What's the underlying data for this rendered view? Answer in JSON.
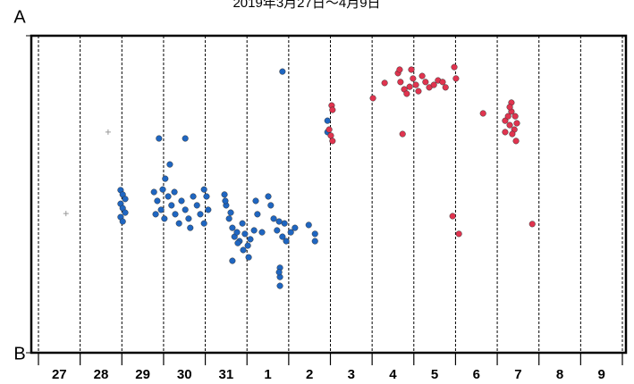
{
  "chart_data": {
    "type": "scatter",
    "title": "2019年3月27日～4月9日",
    "categories": [
      "27",
      "28",
      "29",
      "30",
      "31",
      "1",
      "2",
      "3",
      "4",
      "5",
      "6",
      "7",
      "8",
      "9"
    ],
    "xlim": [
      0,
      14
    ],
    "xticks": [
      0,
      1,
      2,
      3,
      4,
      5,
      6,
      7,
      8,
      9,
      10,
      11,
      12,
      13,
      14
    ],
    "grid": true,
    "grid_style": "dashed",
    "ylim": [
      0,
      100
    ],
    "yticks": [
      {
        "value": 100,
        "label": "A"
      },
      {
        "value": 0,
        "label": "B"
      }
    ],
    "series": [
      {
        "color": "#1f66c1",
        "marker": "circle",
        "x": [
          1.97,
          2.02,
          2.08,
          1.97,
          2.02,
          2.08,
          1.97,
          2.02,
          2.77,
          2.85,
          2.94,
          3.02,
          3.11,
          3.19,
          3.28,
          3.37,
          2.89,
          3.52,
          3.15,
          3.04,
          2.81,
          2.98,
          3.26,
          3.43,
          3.52,
          3.6,
          3.64,
          3.71,
          3.8,
          3.88,
          3.97,
          4.03,
          4.07,
          3.97,
          4.46,
          4.5,
          4.57,
          4.65,
          4.7,
          4.76,
          4.82,
          4.89,
          4.95,
          5.02,
          5.08,
          5.17,
          4.65,
          5.04,
          5.21,
          5.25,
          4.61,
          4.78,
          4.91,
          4.48,
          5.36,
          5.51,
          5.57,
          5.64,
          5.72,
          5.77,
          5.85,
          5.9,
          5.79,
          5.79,
          5.79,
          5.77,
          5.85,
          6.05,
          6.48,
          6.63,
          6.63,
          6.15,
          5.94,
          6.93,
          6.93
        ],
        "values": [
          51.3,
          49.9,
          48.5,
          47.0,
          45.6,
          44.2,
          42.8,
          41.4,
          50.7,
          47.9,
          45.1,
          42.3,
          49.3,
          46.5,
          43.7,
          40.8,
          67.6,
          67.6,
          59.4,
          54.9,
          43.7,
          51.5,
          50.7,
          47.9,
          45.1,
          42.3,
          39.4,
          49.3,
          46.5,
          43.7,
          40.8,
          49.3,
          45.1,
          51.5,
          49.9,
          46.5,
          42.3,
          39.4,
          36.6,
          38.0,
          35.2,
          40.8,
          37.5,
          33.8,
          35.8,
          38.6,
          29.0,
          30.1,
          47.9,
          43.7,
          44.2,
          34.6,
          32.4,
          47.9,
          38.0,
          49.3,
          46.5,
          42.3,
          38.6,
          41.4,
          36.6,
          40.8,
          26.8,
          23.9,
          21.1,
          25.4,
          88.7,
          38.0,
          40.3,
          37.5,
          35.2,
          39.4,
          35.2,
          73.2,
          69.6
        ]
      },
      {
        "color": "#e0344f",
        "marker": "circle",
        "x": [
          7.03,
          7.05,
          6.97,
          7.01,
          7.05,
          8.02,
          8.3,
          8.62,
          8.68,
          8.77,
          8.83,
          8.94,
          8.98,
          9.05,
          9.11,
          9.2,
          9.28,
          9.37,
          9.48,
          9.58,
          9.69,
          9.76,
          9.97,
          10.01,
          8.73,
          8.66,
          8.9,
          10.66,
          11.19,
          11.26,
          11.3,
          11.34,
          11.34,
          11.41,
          11.43,
          11.47,
          11.36,
          11.45,
          11.19,
          9.93,
          10.08,
          11.84,
          11.3
        ],
        "values": [
          78.0,
          76.6,
          70.4,
          68.5,
          66.8,
          80.3,
          85.1,
          88.2,
          85.4,
          83.1,
          81.7,
          89.3,
          86.5,
          84.5,
          82.5,
          87.3,
          85.4,
          83.7,
          84.5,
          85.9,
          85.4,
          83.7,
          90.1,
          86.5,
          69.0,
          89.3,
          83.9,
          75.5,
          73.2,
          74.6,
          71.8,
          76.1,
          78.9,
          70.4,
          74.6,
          72.4,
          69.0,
          66.8,
          69.6,
          43.1,
          37.5,
          40.6,
          77.5
        ]
      },
      {
        "color": "#999999",
        "marker": "plus",
        "x": [
          1.67,
          0.66
        ],
        "values": [
          69.6,
          43.9
        ]
      }
    ]
  }
}
